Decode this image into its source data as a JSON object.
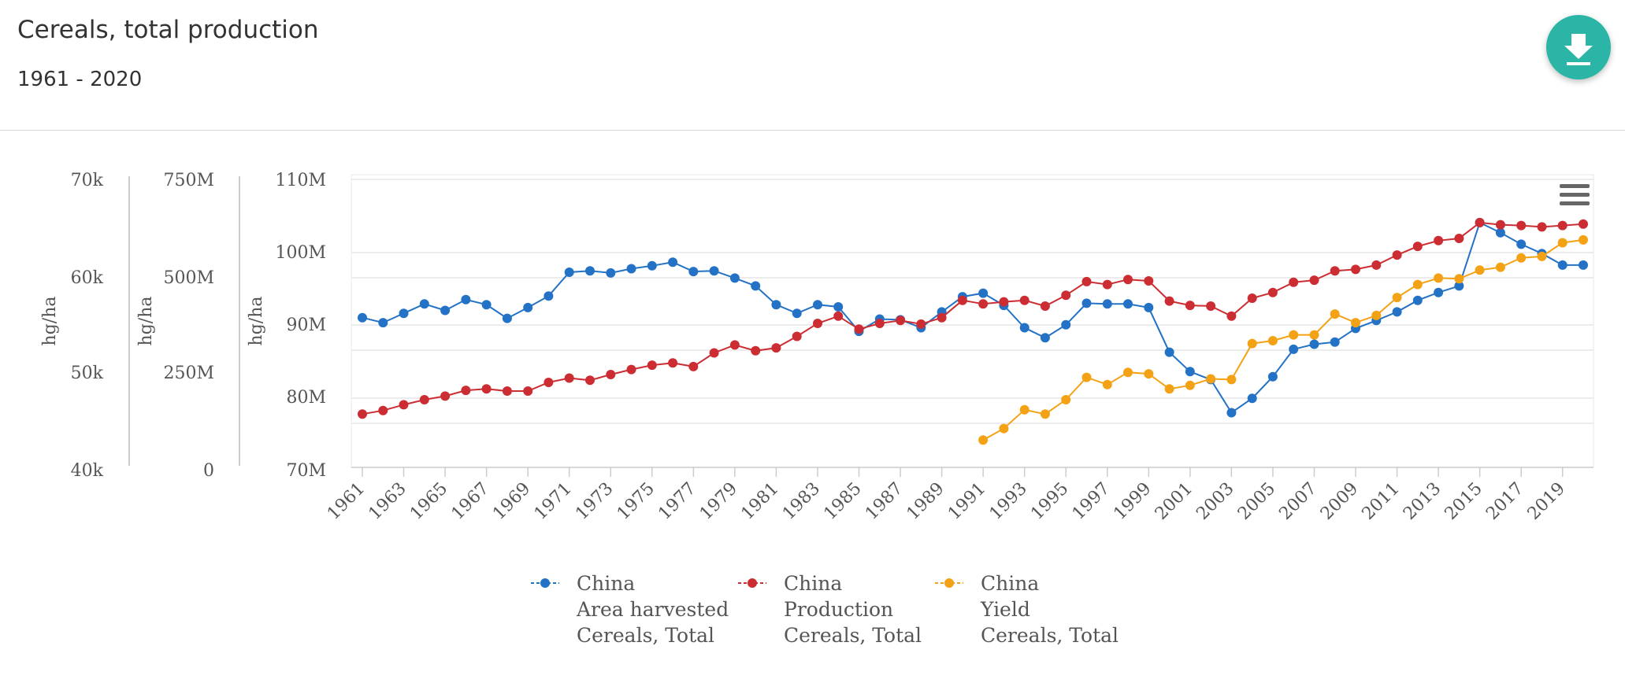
{
  "header": {
    "title": "Cereals, total production",
    "subtitle": "1961 - 2020",
    "download_icon": "download-icon"
  },
  "chart_menu_icon": "hamburger-menu-icon",
  "colors": {
    "area": "#2372c6",
    "production": "#cc2d32",
    "yield": "#f4a215",
    "grid": "#e6e6e6",
    "accent": "#2bb5a7"
  },
  "chart_data": {
    "type": "line",
    "title": "Cereals, total production",
    "subtitle": "1961 - 2020",
    "x": [
      1961,
      1962,
      1963,
      1964,
      1965,
      1966,
      1967,
      1968,
      1969,
      1970,
      1971,
      1972,
      1973,
      1974,
      1975,
      1976,
      1977,
      1978,
      1979,
      1980,
      1981,
      1982,
      1983,
      1984,
      1985,
      1986,
      1987,
      1988,
      1989,
      1990,
      1991,
      1992,
      1993,
      1994,
      1995,
      1996,
      1997,
      1998,
      1999,
      2000,
      2001,
      2002,
      2003,
      2004,
      2005,
      2006,
      2007,
      2008,
      2009,
      2010,
      2011,
      2012,
      2013,
      2014,
      2015,
      2016,
      2017,
      2018,
      2019,
      2020
    ],
    "x_tick_labels": [
      "1961",
      "1963",
      "1965",
      "1967",
      "1969",
      "1971",
      "1973",
      "1975",
      "1977",
      "1979",
      "1981",
      "1983",
      "1985",
      "1987",
      "1989",
      "1991",
      "1993",
      "1995",
      "1997",
      "1999",
      "2001",
      "2003",
      "2005",
      "2007",
      "2009",
      "2011",
      "2013",
      "2015",
      "2017",
      "2019"
    ],
    "y_axes": [
      {
        "label": "hg/ha",
        "ticks": [
          "70k",
          "60k",
          "50k",
          "40k"
        ],
        "tick_values": [
          70000,
          60000,
          50000,
          40000
        ],
        "range": [
          40000,
          70000
        ]
      },
      {
        "label": "hg/ha",
        "ticks": [
          "750M",
          "500M",
          "250M",
          "0"
        ],
        "tick_values": [
          750000000,
          500000000,
          250000000,
          0
        ],
        "range": [
          0,
          750000000
        ]
      },
      {
        "label": "hg/ha",
        "ticks": [
          "110M",
          "100M",
          "90M",
          "80M",
          "70M"
        ],
        "tick_values": [
          110000000,
          100000000,
          90000000,
          80000000,
          70000000
        ],
        "range": [
          70000000,
          110000000
        ]
      }
    ],
    "series": [
      {
        "name": "Area harvested",
        "legend": [
          "China",
          "Area harvested",
          "Cereals, Total"
        ],
        "axis": 2,
        "values": [
          90.8,
          90.1,
          91.4,
          92.7,
          91.8,
          93.3,
          92.6,
          90.7,
          92.2,
          93.8,
          97.1,
          97.3,
          97.0,
          97.6,
          98.0,
          98.5,
          97.2,
          97.3,
          96.3,
          95.2,
          92.6,
          91.4,
          92.6,
          92.3,
          88.9,
          90.6,
          90.5,
          89.4,
          91.6,
          93.7,
          94.2,
          92.5,
          89.4,
          88.0,
          89.8,
          92.8,
          92.7,
          92.7,
          92.2,
          86.0,
          83.3,
          82.2,
          77.6,
          79.6,
          82.6,
          86.4,
          87.1,
          87.4,
          89.3,
          90.4,
          91.6,
          93.2,
          94.3,
          95.2,
          104.0,
          102.6,
          101.0,
          99.7,
          98.1,
          98.1
        ]
      },
      {
        "name": "Production",
        "legend": [
          "China",
          "Production",
          "Cereals, Total"
        ],
        "axis": 2,
        "values": [
          77.4,
          77.9,
          78.7,
          79.4,
          79.9,
          80.7,
          80.9,
          80.6,
          80.6,
          81.8,
          82.4,
          82.1,
          82.9,
          83.6,
          84.2,
          84.5,
          84.0,
          85.9,
          87.0,
          86.2,
          86.6,
          88.2,
          90.0,
          91.0,
          89.2,
          90.0,
          90.4,
          89.9,
          90.8,
          93.2,
          92.7,
          93.0,
          93.2,
          92.4,
          93.9,
          95.8,
          95.4,
          96.1,
          95.9,
          93.1,
          92.5,
          92.4,
          91.0,
          93.5,
          94.3,
          95.7,
          96.0,
          97.3,
          97.5,
          98.1,
          99.5,
          100.7,
          101.5,
          101.8,
          104.0,
          103.7,
          103.6,
          103.4,
          103.6,
          103.8
        ]
      },
      {
        "name": "Yield",
        "legend": [
          "China",
          "Yield",
          "Cereals, Total"
        ],
        "axis": 2,
        "values": [
          null,
          null,
          null,
          null,
          null,
          null,
          null,
          null,
          null,
          null,
          null,
          null,
          null,
          null,
          null,
          null,
          null,
          null,
          null,
          null,
          null,
          null,
          null,
          null,
          null,
          null,
          null,
          null,
          null,
          null,
          73.8,
          75.4,
          78.0,
          77.4,
          79.4,
          82.5,
          81.5,
          83.2,
          83.0,
          80.9,
          81.4,
          82.3,
          82.2,
          87.2,
          87.6,
          88.4,
          88.4,
          91.3,
          90.1,
          91.1,
          93.6,
          95.4,
          96.3,
          96.2,
          97.4,
          97.8,
          99.1,
          99.3,
          101.2,
          101.6
        ]
      }
    ],
    "legend_position": "bottom-center",
    "grid": true
  }
}
